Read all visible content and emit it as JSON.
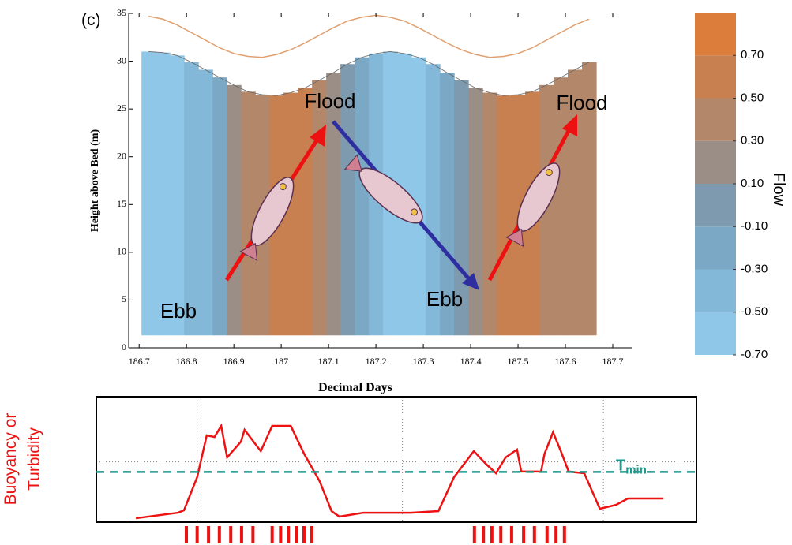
{
  "chart_data": [
    {
      "type": "contour",
      "panel_label": "(c)",
      "xlabel": "Decimal Days",
      "ylabel": "Height above Bed (m)",
      "xlim": [
        186.678,
        187.74
      ],
      "ylim": [
        0,
        35
      ],
      "xticks": [
        186.7,
        186.8,
        186.9,
        {
          "value": 187,
          "label": "187"
        },
        187.1,
        187.2,
        187.3,
        187.4,
        187.5,
        187.6,
        187.7
      ],
      "yticks": [
        0,
        5,
        10,
        15,
        20,
        25,
        30,
        35
      ],
      "x": [
        186.72,
        186.75,
        186.78,
        186.81,
        186.84,
        186.87,
        186.9,
        186.93,
        186.96,
        186.99,
        187.02,
        187.05,
        187.08,
        187.11,
        187.14,
        187.17,
        187.2,
        187.23,
        187.26,
        187.29,
        187.32,
        187.35,
        187.38,
        187.41,
        187.44,
        187.47,
        187.5,
        187.53,
        187.56,
        187.59,
        187.62,
        187.65
      ],
      "values": [
        -0.53,
        -0.6,
        -0.58,
        -0.49,
        -0.32,
        -0.11,
        0.11,
        0.32,
        0.49,
        0.58,
        0.6,
        0.53,
        0.38,
        0.19,
        -0.04,
        -0.26,
        -0.44,
        -0.56,
        -0.6,
        -0.56,
        -0.44,
        -0.26,
        -0.04,
        0.19,
        0.38,
        0.53,
        0.6,
        0.58,
        0.49,
        0.32,
        0.45,
        0.4
      ],
      "top": [
        31.0,
        30.9,
        30.6,
        29.9,
        29.1,
        28.3,
        27.5,
        26.8,
        26.5,
        26.4,
        26.7,
        27.2,
        28.0,
        28.8,
        29.7,
        30.4,
        30.8,
        31.0,
        30.8,
        30.4,
        29.7,
        28.8,
        28.0,
        27.2,
        26.7,
        26.4,
        26.5,
        26.8,
        27.5,
        28.3,
        29.1,
        29.9
      ],
      "bottom": 1.3,
      "surface": [
        34.7,
        34.4,
        33.8,
        33.0,
        32.2,
        31.4,
        30.8,
        30.5,
        30.4,
        30.7,
        31.2,
        31.9,
        32.7,
        33.5,
        34.2,
        34.6,
        34.8,
        34.6,
        34.2,
        33.5,
        32.7,
        31.9,
        31.2,
        30.7,
        30.4,
        30.5,
        30.8,
        31.4,
        32.2,
        33.0,
        33.8,
        34.4
      ],
      "surface_color": "#e0a070",
      "colorbar": {
        "title": "Flow",
        "clim": [
          -0.7,
          0.9
        ],
        "colors": [
          "#8fc7e8",
          "#84b8d8",
          "#7ba8c4",
          "#7e9aae",
          "#9a8e86",
          "#b3876a",
          "#c98050",
          "#dc7d3c"
        ],
        "ticks": [
          {
            "value": 0.7,
            "label": "0.70"
          },
          {
            "value": 0.5,
            "label": "0.50"
          },
          {
            "value": 0.3,
            "label": "0.30"
          },
          {
            "value": 0.1,
            "label": "0.10"
          },
          {
            "value": -0.1,
            "label": "-0.10"
          },
          {
            "value": -0.3,
            "label": "-0.30"
          },
          {
            "value": -0.5,
            "label": "-0.50"
          },
          {
            "value": -0.7,
            "label": "-0.70"
          }
        ]
      },
      "annotations": [
        "Flood",
        "Flood",
        "Ebb",
        "Ebb"
      ]
    },
    {
      "type": "line",
      "ylabel": [
        "Buoyancy or",
        "Turbidity"
      ],
      "xlim": [
        0,
        1
      ],
      "ylim": [
        0,
        1
      ],
      "x": [
        0.066,
        0.136,
        0.146,
        0.168,
        0.184,
        0.197,
        0.208,
        0.218,
        0.241,
        0.247,
        0.274,
        0.293,
        0.324,
        0.346,
        0.372,
        0.392,
        0.405,
        0.445,
        0.524,
        0.57,
        0.596,
        0.629,
        0.649,
        0.666,
        0.682,
        0.701,
        0.708,
        0.741,
        0.747,
        0.761,
        0.774,
        0.787,
        0.813,
        0.839,
        0.866,
        0.886,
        0.945
      ],
      "values": [
        0.031,
        0.075,
        0.094,
        0.358,
        0.692,
        0.679,
        0.767,
        0.516,
        0.642,
        0.736,
        0.566,
        0.767,
        0.767,
        0.547,
        0.327,
        0.088,
        0.044,
        0.075,
        0.075,
        0.088,
        0.358,
        0.566,
        0.465,
        0.39,
        0.516,
        0.579,
        0.403,
        0.403,
        0.547,
        0.717,
        0.566,
        0.403,
        0.39,
        0.107,
        0.138,
        0.189,
        0.189
      ],
      "color": "#ee1111",
      "threshold": 0.4,
      "threshold_color": "#1a9a8a",
      "threshold_label": "T",
      "threshold_subscript": "min",
      "xgrid": [
        0.168,
        0.51,
        0.845
      ],
      "ygrid": [
        0.48
      ],
      "events": [
        0.15,
        0.168,
        0.187,
        0.205,
        0.224,
        0.242,
        0.261,
        0.293,
        0.307,
        0.32,
        0.333,
        0.346,
        0.359,
        0.63,
        0.645,
        0.659,
        0.674,
        0.692,
        0.712,
        0.73,
        0.751,
        0.766,
        0.78
      ]
    }
  ]
}
